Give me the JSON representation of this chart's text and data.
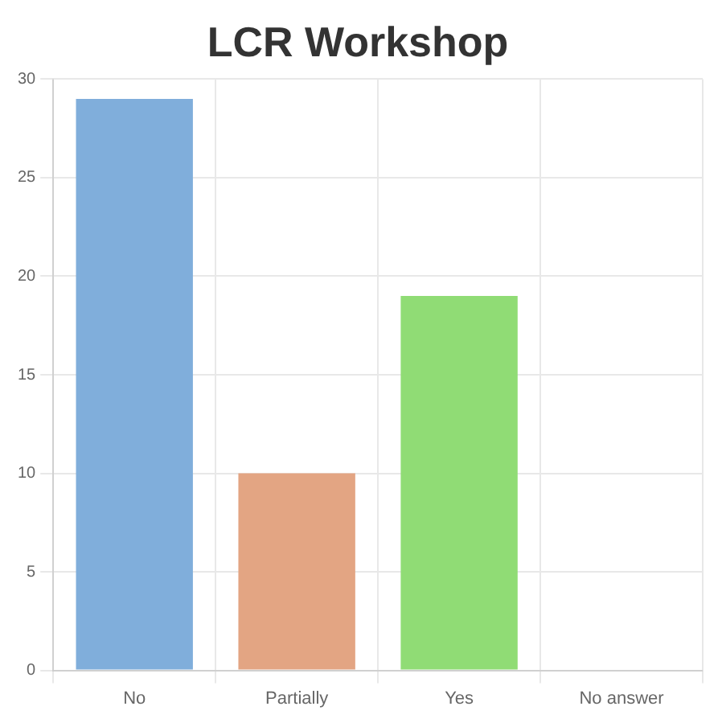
{
  "chart_data": {
    "type": "bar",
    "title": "LCR Workshop",
    "categories": [
      "No",
      "Partially",
      "Yes",
      "No answer"
    ],
    "values": [
      29,
      10,
      19,
      0
    ],
    "colors": [
      "#80aedb",
      "#e3a583",
      "#90dc75",
      "#c9c9c9"
    ],
    "ylim": [
      0,
      30
    ],
    "yticks": [
      0,
      5,
      10,
      15,
      20,
      25,
      30
    ],
    "grid": true,
    "legend": false
  }
}
